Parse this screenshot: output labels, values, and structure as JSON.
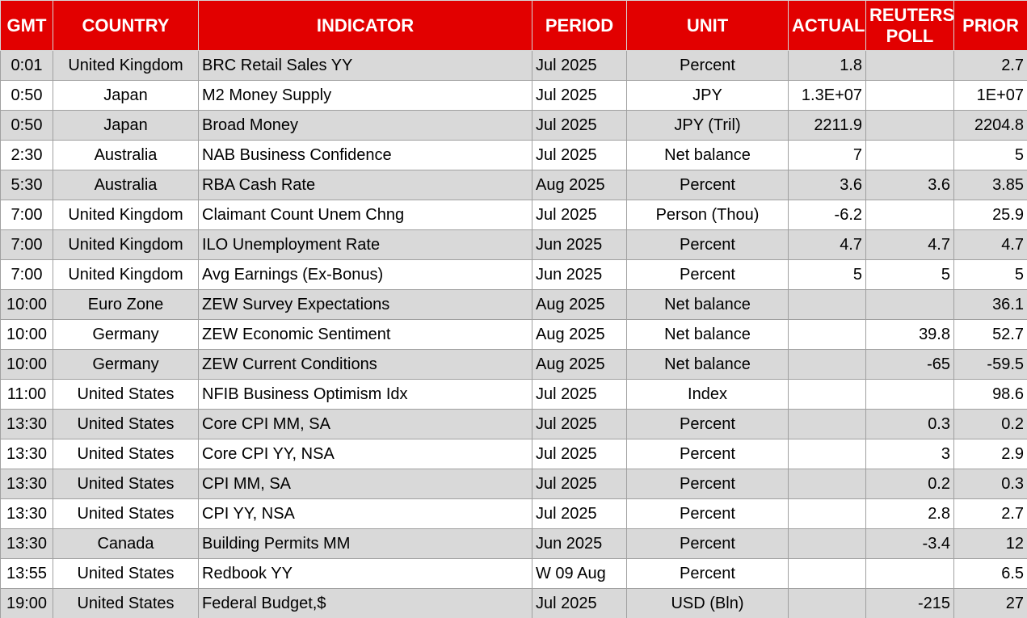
{
  "table": {
    "header": [
      "GMT",
      "COUNTRY",
      "INDICATOR",
      "PERIOD",
      "UNIT",
      "ACTUAL",
      "REUTERS POLL",
      "PRIOR"
    ],
    "rows": [
      [
        "0:01",
        "United Kingdom",
        "BRC Retail Sales YY",
        "Jul 2025",
        "Percent",
        "1.8",
        null,
        "2.7"
      ],
      [
        "0:50",
        "Japan",
        "M2 Money Supply",
        "Jul 2025",
        "JPY",
        "1.3E+07",
        null,
        "1E+07"
      ],
      [
        "0:50",
        "Japan",
        "Broad Money",
        "Jul 2025",
        "JPY (Tril)",
        "2211.9",
        null,
        "2204.8"
      ],
      [
        "2:30",
        "Australia",
        "NAB Business Confidence",
        "Jul 2025",
        "Net balance",
        "7",
        null,
        "5"
      ],
      [
        "5:30",
        "Australia",
        "RBA Cash Rate",
        "Aug 2025",
        "Percent",
        "3.6",
        "3.6",
        "3.85"
      ],
      [
        "7:00",
        "United Kingdom",
        "Claimant Count Unem Chng",
        "Jul 2025",
        "Person (Thou)",
        "-6.2",
        null,
        "25.9"
      ],
      [
        "7:00",
        "United Kingdom",
        "ILO Unemployment Rate",
        "Jun 2025",
        "Percent",
        "4.7",
        "4.7",
        "4.7"
      ],
      [
        "7:00",
        "United Kingdom",
        "Avg Earnings (Ex-Bonus)",
        "Jun 2025",
        "Percent",
        "5",
        "5",
        "5"
      ],
      [
        "10:00",
        "Euro Zone",
        "ZEW Survey Expectations",
        "Aug 2025",
        "Net balance",
        null,
        null,
        "36.1"
      ],
      [
        "10:00",
        "Germany",
        "ZEW Economic Sentiment",
        "Aug 2025",
        "Net balance",
        null,
        "39.8",
        "52.7"
      ],
      [
        "10:00",
        "Germany",
        "ZEW Current Conditions",
        "Aug 2025",
        "Net balance",
        null,
        "-65",
        "-59.5"
      ],
      [
        "11:00",
        "United States",
        "NFIB Business Optimism Idx",
        "Jul 2025",
        "Index",
        null,
        null,
        "98.6"
      ],
      [
        "13:30",
        "United States",
        "Core CPI MM, SA",
        "Jul 2025",
        "Percent",
        null,
        "0.3",
        "0.2"
      ],
      [
        "13:30",
        "United States",
        "Core CPI YY, NSA",
        "Jul 2025",
        "Percent",
        null,
        "3",
        "2.9"
      ],
      [
        "13:30",
        "United States",
        "CPI MM, SA",
        "Jul 2025",
        "Percent",
        null,
        "0.2",
        "0.3"
      ],
      [
        "13:30",
        "United States",
        "CPI YY, NSA",
        "Jul 2025",
        "Percent",
        null,
        "2.8",
        "2.7"
      ],
      [
        "13:30",
        "Canada",
        "Building Permits MM",
        "Jun 2025",
        "Percent",
        null,
        "-3.4",
        "12"
      ],
      [
        "13:55",
        "United States",
        "Redbook YY",
        "W 09 Aug",
        "Percent",
        null,
        null,
        "6.5"
      ],
      [
        "19:00",
        "United States",
        "Federal Budget,$",
        "Jul 2025",
        "USD (Bln)",
        null,
        "-215",
        "27"
      ]
    ]
  }
}
